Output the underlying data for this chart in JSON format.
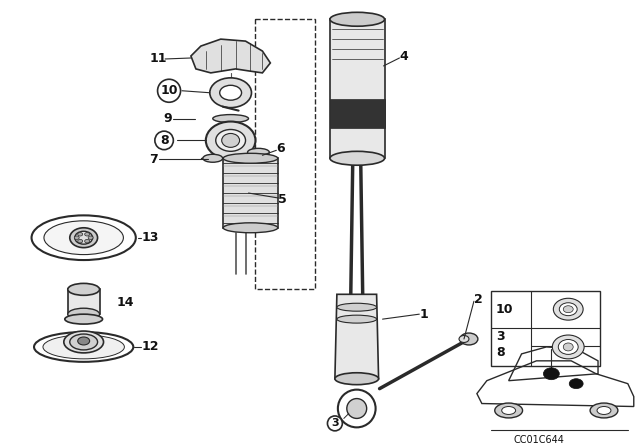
{
  "bg_color": "#ffffff",
  "fig_width": 6.4,
  "fig_height": 4.48,
  "code": "CC01C644",
  "gray": "#2a2a2a",
  "lgray": "#aaaaaa",
  "mgray": "#666666",
  "dgray": "#111111"
}
